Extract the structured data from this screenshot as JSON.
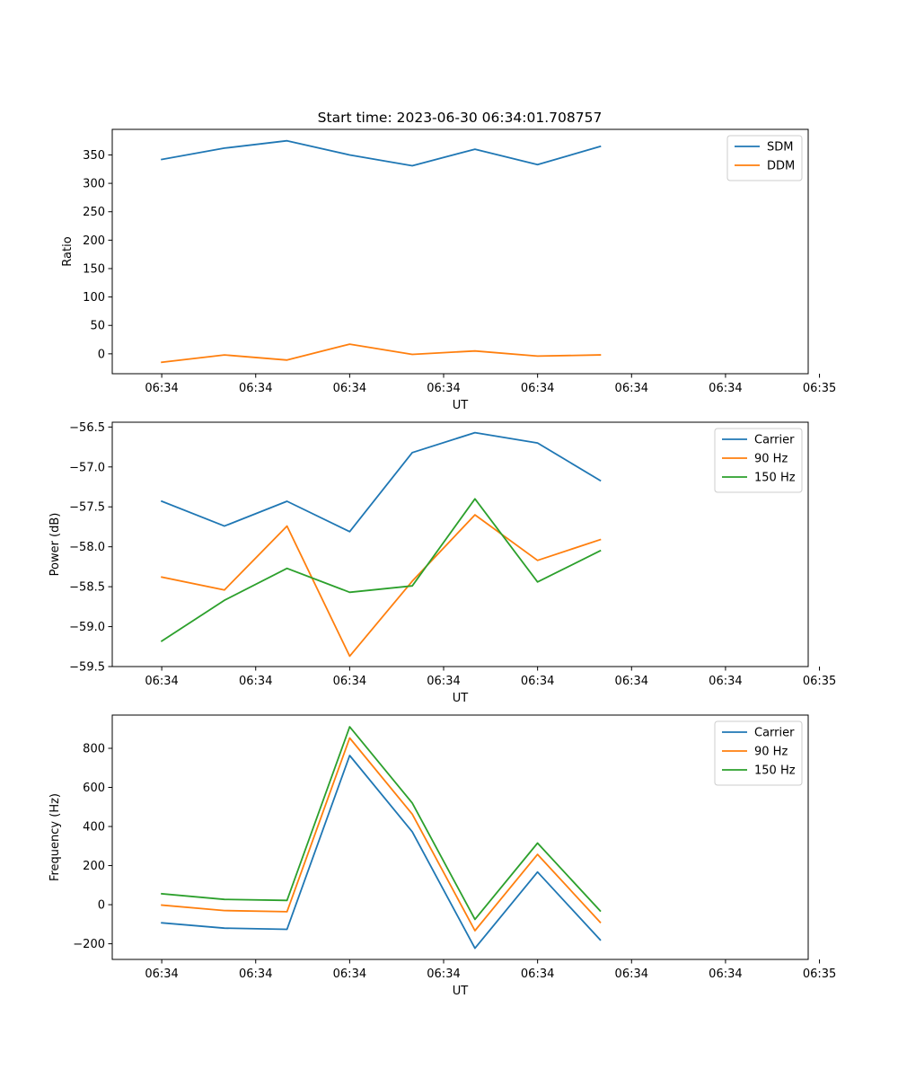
{
  "figure": {
    "title": "Start time: 2023-06-30 06:34:01.708757"
  },
  "chart_data": [
    {
      "type": "line",
      "title": "Start time: 2023-06-30 06:34:01.708757",
      "xlabel": "UT",
      "ylabel": "Ratio",
      "x_tick_labels": [
        "06:34",
        "06:34",
        "06:34",
        "06:34",
        "06:34",
        "06:34",
        "06:34"
      ],
      "x_end_tick_label": "06:35",
      "x": [
        1,
        2,
        3,
        4,
        5,
        6,
        7,
        8
      ],
      "xlim": [
        0.21,
        11.32
      ],
      "yticks": [
        0,
        50,
        100,
        150,
        200,
        250,
        300,
        350
      ],
      "ylim": [
        -35,
        395
      ],
      "legend": "top-right",
      "series": [
        {
          "name": "SDM",
          "color": "#1f77b4",
          "values": [
            342,
            362,
            375,
            350,
            331,
            360,
            333,
            365
          ]
        },
        {
          "name": "DDM",
          "color": "#ff7f0e",
          "values": [
            -15,
            -2,
            -11,
            17,
            -1,
            5,
            -4,
            -2
          ]
        }
      ]
    },
    {
      "type": "line",
      "xlabel": "UT",
      "ylabel": "Power (dB)",
      "x_tick_labels": [
        "06:34",
        "06:34",
        "06:34",
        "06:34",
        "06:34",
        "06:34",
        "06:34"
      ],
      "x_end_tick_label": "06:35",
      "x": [
        1,
        2,
        3,
        4,
        5,
        6,
        7,
        8
      ],
      "xlim": [
        0.21,
        11.32
      ],
      "yticks": [
        -59.5,
        -59.0,
        -58.5,
        -58.0,
        -57.5,
        -57.0,
        -56.5
      ],
      "ytick_labels": [
        "−59.5",
        "−59.0",
        "−58.5",
        "−58.0",
        "−57.5",
        "−57.0",
        "−56.5"
      ],
      "ylim": [
        -59.5,
        -56.44
      ],
      "legend": "top-right",
      "series": [
        {
          "name": "Carrier",
          "color": "#1f77b4",
          "values": [
            -57.43,
            -57.74,
            -57.43,
            -57.81,
            -56.82,
            -56.57,
            -56.7,
            -57.17
          ]
        },
        {
          "name": "90 Hz",
          "color": "#ff7f0e",
          "values": [
            -58.38,
            -58.54,
            -57.74,
            -59.37,
            -58.43,
            -57.6,
            -58.17,
            -57.91
          ]
        },
        {
          "name": "150 Hz",
          "color": "#2ca02c",
          "values": [
            -59.18,
            -58.67,
            -58.27,
            -58.57,
            -58.49,
            -57.4,
            -58.44,
            -58.05
          ]
        }
      ]
    },
    {
      "type": "line",
      "xlabel": "UT",
      "ylabel": "Frequency (Hz)",
      "x_tick_labels": [
        "06:34",
        "06:34",
        "06:34",
        "06:34",
        "06:34",
        "06:34",
        "06:34"
      ],
      "x_end_tick_label": "06:35",
      "x": [
        1,
        2,
        3,
        4,
        5,
        6,
        7,
        8
      ],
      "xlim": [
        0.21,
        11.32
      ],
      "yticks": [
        -200,
        0,
        200,
        400,
        600,
        800
      ],
      "ytick_labels": [
        "−200",
        "0",
        "200",
        "400",
        "600",
        "800"
      ],
      "ylim": [
        -280,
        970
      ],
      "legend": "top-right",
      "series": [
        {
          "name": "Carrier",
          "color": "#1f77b4",
          "values": [
            -93,
            -120,
            -126,
            763,
            373,
            -223,
            167,
            -180
          ]
        },
        {
          "name": "90 Hz",
          "color": "#ff7f0e",
          "values": [
            -2,
            -30,
            -36,
            853,
            463,
            -133,
            257,
            -90
          ]
        },
        {
          "name": "150 Hz",
          "color": "#2ca02c",
          "values": [
            56,
            27,
            22,
            910,
            520,
            -75,
            315,
            -32
          ]
        }
      ]
    }
  ]
}
